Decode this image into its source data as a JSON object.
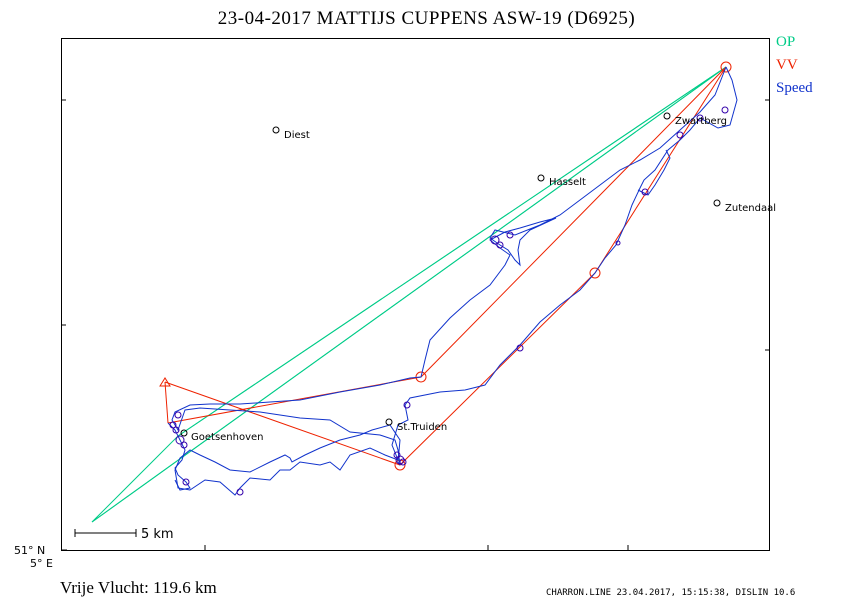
{
  "header": {
    "title": "23-04-2017   MATTIJS CUPPENS   ASW-19 (D6925)"
  },
  "legend": [
    {
      "label": "OP",
      "color": "#00cc88"
    },
    {
      "label": "VV",
      "color": "#ee2200"
    },
    {
      "label": "Speed",
      "color": "#1133cc"
    }
  ],
  "axes": {
    "lat_label": "51° N",
    "lon_label": "5° E"
  },
  "scalebar": {
    "label": "5  km"
  },
  "places": [
    {
      "name": "Diest"
    },
    {
      "name": "Hasselt"
    },
    {
      "name": "Zwartberg"
    },
    {
      "name": "Zutendaal"
    },
    {
      "name": "St.Truiden"
    },
    {
      "name": "Goetsenhoven"
    }
  ],
  "result": {
    "text": "Vrije Vlucht:  119.6 km"
  },
  "footer": {
    "text": "CHARRON.LINE 23.04.2017, 15:15:38, DISLIN 10.6"
  },
  "colors": {
    "op": "#00cc88",
    "vv": "#ee2200",
    "track": "#1133cc",
    "track_dark": "#3300aa",
    "frame": "#000000"
  }
}
